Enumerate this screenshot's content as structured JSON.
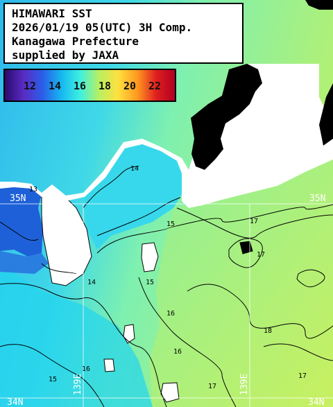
{
  "header": {
    "line1": "HIMAWARI SST",
    "line2": "2026/01/19 05(UTC) 3H Comp.",
    "line3": "Kanagawa Prefecture",
    "line4": "supplied by JAXA"
  },
  "legend": {
    "ticks": [
      "12",
      "14",
      "16",
      "18",
      "20",
      "22"
    ],
    "colors": [
      "#2a0a6b",
      "#5a2bc4",
      "#2a5ee8",
      "#16b8f0",
      "#3ff0e0",
      "#b8f060",
      "#ffe040",
      "#ff9a20",
      "#e02020",
      "#b00020"
    ]
  },
  "grid": {
    "lat_label_left": "35N",
    "lat_label_right": "35N",
    "bottom_left": "34N",
    "bottom_right": "34N",
    "lon_label_1": "139E",
    "lon_label_2": "139E"
  },
  "contours": [
    "13",
    "14",
    "14",
    "15",
    "15",
    "16",
    "16",
    "17",
    "17",
    "17",
    "18",
    "15",
    "16",
    "17"
  ],
  "colors": {
    "land": "#ffffff",
    "nodata": "#000000",
    "sst_cold": "#1a5fd8",
    "sst_cool": "#1ec8f0",
    "sst_mid": "#5ef0c8",
    "sst_warm": "#b8f070"
  }
}
